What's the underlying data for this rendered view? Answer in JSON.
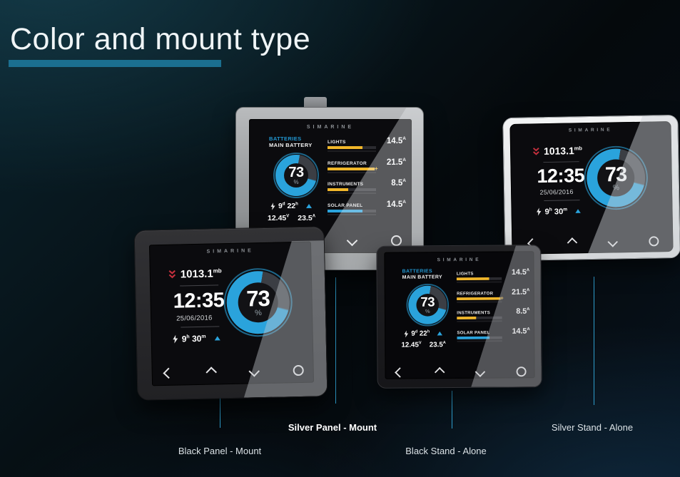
{
  "page": {
    "title": "Color and mount type"
  },
  "brand": "SIMARINE",
  "accent": {
    "title_underline": "#1b6f90",
    "connector_line": "#2e9dcc",
    "screen_blue": "#2aa3dc",
    "bar_yellow": "#f0b62a",
    "alert_red": "#c5303d",
    "label_text": "#dbe2e6"
  },
  "icons": {
    "pressure_trend": "chevron-double-down-icon",
    "charge": "lightning-bolt-icon",
    "trend": "triangle-up-icon",
    "nav": [
      "chevron-left-icon",
      "chevron-up-icon",
      "chevron-down-icon",
      "circle-icon"
    ]
  },
  "devices": [
    {
      "id": "black-panel",
      "label": "Black Panel - Mount",
      "screen": "home"
    },
    {
      "id": "silver-panel",
      "label": "Silver Panel - Mount",
      "screen": "battery"
    },
    {
      "id": "black-stand",
      "label": "Black Stand - Alone",
      "screen": "battery"
    },
    {
      "id": "silver-stand",
      "label": "Silver Stand - Alone",
      "screen": "home"
    }
  ],
  "screens": {
    "battery": {
      "title": "BATTERIES",
      "subtitle": "MAIN BATTERY",
      "gauge": {
        "value": "73",
        "unit": "%"
      },
      "runtime": {
        "days": "9",
        "days_unit": "d",
        "hours": "22",
        "hours_unit": "h"
      },
      "stats": {
        "voltage": "12.45",
        "voltage_unit": "V",
        "current": "23.5",
        "current_unit": "A"
      },
      "channels": [
        {
          "label": "LIGHTS",
          "value": "14.5",
          "unit": "A",
          "fill_pct": 72,
          "color": "#f0b62a"
        },
        {
          "label": "REFRIGERATOR",
          "value": "21.5",
          "unit": "A",
          "fill_pct": 97,
          "color": "#f0b62a",
          "overflow": "+"
        },
        {
          "label": "INSTRUMENTS",
          "value": "8.5",
          "unit": "A",
          "fill_pct": 42,
          "color": "#f0b62a"
        },
        {
          "label": "SOLAR PANEL",
          "value": "14.5",
          "unit": "A",
          "fill_pct": 72,
          "color": "#2aa3dc"
        }
      ]
    },
    "home": {
      "pressure": "1013.1",
      "pressure_unit": "mb",
      "time": "12:35",
      "date": "25/06/2016",
      "charge_hours": "9",
      "hours_unit": "h",
      "charge_minutes": "30",
      "minutes_unit": "m",
      "gauge": {
        "value": "73",
        "unit": "%"
      }
    }
  }
}
